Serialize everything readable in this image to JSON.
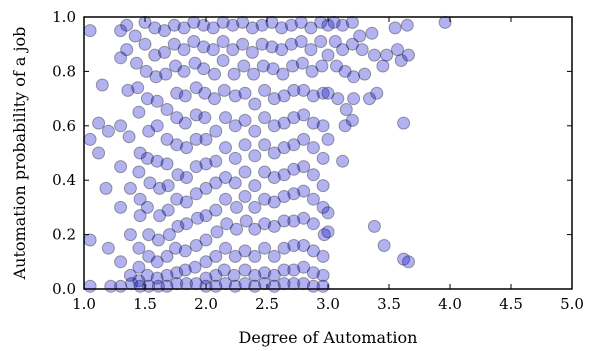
{
  "chart_data": {
    "type": "scatter",
    "title": "",
    "xlabel": "Degree of Automation",
    "ylabel": "Automation probability of a job",
    "xlim": [
      1.0,
      5.0
    ],
    "ylim": [
      0.0,
      1.0
    ],
    "xticks": [
      "1.0",
      "1.5",
      "2.0",
      "2.5",
      "3.0",
      "3.5",
      "4.0",
      "4.5",
      "5.0"
    ],
    "yticks": [
      "0.0",
      "0.2",
      "0.4",
      "0.6",
      "0.8",
      "1.0"
    ],
    "grid": false,
    "marker_color": "#0000cc",
    "marker_edge": "#000000",
    "points": [
      [
        1.05,
        0.95
      ],
      [
        1.05,
        0.55
      ],
      [
        1.05,
        0.18
      ],
      [
        1.05,
        0.01
      ],
      [
        1.12,
        0.5
      ],
      [
        1.12,
        0.61
      ],
      [
        1.15,
        0.75
      ],
      [
        1.18,
        0.37
      ],
      [
        1.2,
        0.58
      ],
      [
        1.2,
        0.15
      ],
      [
        1.22,
        0.01
      ],
      [
        1.3,
        0.95
      ],
      [
        1.3,
        0.85
      ],
      [
        1.3,
        0.6
      ],
      [
        1.3,
        0.45
      ],
      [
        1.3,
        0.3
      ],
      [
        1.3,
        0.1
      ],
      [
        1.3,
        0.01
      ],
      [
        1.35,
        0.97
      ],
      [
        1.35,
        0.88
      ],
      [
        1.36,
        0.73
      ],
      [
        1.37,
        0.56
      ],
      [
        1.38,
        0.37
      ],
      [
        1.38,
        0.2
      ],
      [
        1.38,
        0.05
      ],
      [
        1.39,
        0.02
      ],
      [
        1.42,
        0.93
      ],
      [
        1.43,
        0.83
      ],
      [
        1.44,
        0.74
      ],
      [
        1.45,
        0.65
      ],
      [
        1.46,
        0.5
      ],
      [
        1.45,
        0.43
      ],
      [
        1.46,
        0.33
      ],
      [
        1.46,
        0.27
      ],
      [
        1.45,
        0.15
      ],
      [
        1.45,
        0.08
      ],
      [
        1.45,
        0.03
      ],
      [
        1.46,
        0.01
      ],
      [
        1.5,
        0.98
      ],
      [
        1.5,
        0.9
      ],
      [
        1.51,
        0.8
      ],
      [
        1.52,
        0.7
      ],
      [
        1.53,
        0.58
      ],
      [
        1.52,
        0.48
      ],
      [
        1.54,
        0.39
      ],
      [
        1.52,
        0.3
      ],
      [
        1.53,
        0.2
      ],
      [
        1.53,
        0.12
      ],
      [
        1.52,
        0.05
      ],
      [
        1.53,
        0.01
      ],
      [
        1.58,
        0.96
      ],
      [
        1.58,
        0.86
      ],
      [
        1.59,
        0.78
      ],
      [
        1.6,
        0.69
      ],
      [
        1.6,
        0.6
      ],
      [
        1.6,
        0.47
      ],
      [
        1.62,
        0.37
      ],
      [
        1.62,
        0.27
      ],
      [
        1.61,
        0.18
      ],
      [
        1.6,
        0.1
      ],
      [
        1.6,
        0.04
      ],
      [
        1.61,
        0.01
      ],
      [
        1.66,
        0.95
      ],
      [
        1.66,
        0.87
      ],
      [
        1.67,
        0.79
      ],
      [
        1.68,
        0.66
      ],
      [
        1.68,
        0.55
      ],
      [
        1.68,
        0.46
      ],
      [
        1.69,
        0.38
      ],
      [
        1.69,
        0.29
      ],
      [
        1.7,
        0.2
      ],
      [
        1.68,
        0.12
      ],
      [
        1.68,
        0.05
      ],
      [
        1.68,
        0.01
      ],
      [
        1.74,
        0.97
      ],
      [
        1.74,
        0.9
      ],
      [
        1.75,
        0.82
      ],
      [
        1.76,
        0.72
      ],
      [
        1.76,
        0.63
      ],
      [
        1.76,
        0.53
      ],
      [
        1.77,
        0.42
      ],
      [
        1.76,
        0.33
      ],
      [
        1.77,
        0.23
      ],
      [
        1.75,
        0.15
      ],
      [
        1.76,
        0.06
      ],
      [
        1.76,
        0.02
      ],
      [
        1.82,
        0.96
      ],
      [
        1.82,
        0.88
      ],
      [
        1.82,
        0.8
      ],
      [
        1.83,
        0.71
      ],
      [
        1.83,
        0.61
      ],
      [
        1.84,
        0.52
      ],
      [
        1.84,
        0.41
      ],
      [
        1.84,
        0.32
      ],
      [
        1.84,
        0.24
      ],
      [
        1.83,
        0.14
      ],
      [
        1.83,
        0.07
      ],
      [
        1.84,
        0.02
      ],
      [
        1.9,
        0.98
      ],
      [
        1.9,
        0.91
      ],
      [
        1.91,
        0.83
      ],
      [
        1.92,
        0.74
      ],
      [
        1.92,
        0.64
      ],
      [
        1.92,
        0.55
      ],
      [
        1.92,
        0.45
      ],
      [
        1.92,
        0.35
      ],
      [
        1.93,
        0.26
      ],
      [
        1.92,
        0.16
      ],
      [
        1.91,
        0.08
      ],
      [
        1.92,
        0.02
      ],
      [
        1.98,
        0.97
      ],
      [
        1.98,
        0.89
      ],
      [
        1.98,
        0.81
      ],
      [
        1.99,
        0.72
      ],
      [
        1.99,
        0.63
      ],
      [
        2.0,
        0.55
      ],
      [
        2.0,
        0.46
      ],
      [
        2.0,
        0.37
      ],
      [
        2.0,
        0.27
      ],
      [
        2.0,
        0.18
      ],
      [
        2.0,
        0.1
      ],
      [
        2.0,
        0.04
      ],
      [
        2.0,
        0.01
      ],
      [
        2.06,
        0.96
      ],
      [
        2.06,
        0.88
      ],
      [
        2.07,
        0.79
      ],
      [
        2.07,
        0.7
      ],
      [
        2.08,
        0.58
      ],
      [
        2.08,
        0.47
      ],
      [
        2.08,
        0.39
      ],
      [
        2.08,
        0.29
      ],
      [
        2.09,
        0.21
      ],
      [
        2.08,
        0.12
      ],
      [
        2.08,
        0.05
      ],
      [
        2.08,
        0.01
      ],
      [
        2.14,
        0.98
      ],
      [
        2.14,
        0.91
      ],
      [
        2.14,
        0.84
      ],
      [
        2.15,
        0.73
      ],
      [
        2.16,
        0.63
      ],
      [
        2.16,
        0.52
      ],
      [
        2.16,
        0.41
      ],
      [
        2.16,
        0.33
      ],
      [
        2.17,
        0.24
      ],
      [
        2.16,
        0.15
      ],
      [
        2.15,
        0.07
      ],
      [
        2.16,
        0.02
      ],
      [
        2.22,
        0.97
      ],
      [
        2.22,
        0.88
      ],
      [
        2.23,
        0.79
      ],
      [
        2.24,
        0.71
      ],
      [
        2.24,
        0.6
      ],
      [
        2.24,
        0.48
      ],
      [
        2.24,
        0.39
      ],
      [
        2.25,
        0.3
      ],
      [
        2.25,
        0.22
      ],
      [
        2.24,
        0.12
      ],
      [
        2.23,
        0.05
      ],
      [
        2.24,
        0.01
      ],
      [
        2.3,
        0.98
      ],
      [
        2.3,
        0.9
      ],
      [
        2.31,
        0.82
      ],
      [
        2.32,
        0.72
      ],
      [
        2.32,
        0.62
      ],
      [
        2.32,
        0.53
      ],
      [
        2.32,
        0.43
      ],
      [
        2.32,
        0.34
      ],
      [
        2.33,
        0.25
      ],
      [
        2.32,
        0.14
      ],
      [
        2.32,
        0.07
      ],
      [
        2.32,
        0.02
      ],
      [
        2.38,
        0.96
      ],
      [
        2.38,
        0.87
      ],
      [
        2.39,
        0.79
      ],
      [
        2.4,
        0.68
      ],
      [
        2.4,
        0.58
      ],
      [
        2.4,
        0.49
      ],
      [
        2.4,
        0.38
      ],
      [
        2.4,
        0.3
      ],
      [
        2.4,
        0.22
      ],
      [
        2.4,
        0.12
      ],
      [
        2.4,
        0.05
      ],
      [
        2.4,
        0.01
      ],
      [
        2.46,
        0.97
      ],
      [
        2.46,
        0.9
      ],
      [
        2.47,
        0.82
      ],
      [
        2.48,
        0.73
      ],
      [
        2.48,
        0.63
      ],
      [
        2.48,
        0.53
      ],
      [
        2.48,
        0.43
      ],
      [
        2.48,
        0.33
      ],
      [
        2.48,
        0.24
      ],
      [
        2.48,
        0.15
      ],
      [
        2.48,
        0.06
      ],
      [
        2.48,
        0.02
      ],
      [
        2.54,
        0.98
      ],
      [
        2.54,
        0.89
      ],
      [
        2.55,
        0.81
      ],
      [
        2.56,
        0.7
      ],
      [
        2.56,
        0.6
      ],
      [
        2.56,
        0.5
      ],
      [
        2.56,
        0.41
      ],
      [
        2.56,
        0.32
      ],
      [
        2.56,
        0.23
      ],
      [
        2.56,
        0.12
      ],
      [
        2.56,
        0.05
      ],
      [
        2.56,
        0.01
      ],
      [
        2.62,
        0.96
      ],
      [
        2.62,
        0.88
      ],
      [
        2.63,
        0.79
      ],
      [
        2.64,
        0.71
      ],
      [
        2.64,
        0.61
      ],
      [
        2.64,
        0.52
      ],
      [
        2.64,
        0.42
      ],
      [
        2.64,
        0.34
      ],
      [
        2.64,
        0.25
      ],
      [
        2.64,
        0.15
      ],
      [
        2.64,
        0.07
      ],
      [
        2.64,
        0.02
      ],
      [
        2.7,
        0.97
      ],
      [
        2.7,
        0.9
      ],
      [
        2.71,
        0.82
      ],
      [
        2.72,
        0.73
      ],
      [
        2.72,
        0.63
      ],
      [
        2.72,
        0.53
      ],
      [
        2.72,
        0.44
      ],
      [
        2.72,
        0.35
      ],
      [
        2.72,
        0.25
      ],
      [
        2.72,
        0.16
      ],
      [
        2.72,
        0.07
      ],
      [
        2.72,
        0.02
      ],
      [
        2.78,
        0.98
      ],
      [
        2.78,
        0.91
      ],
      [
        2.79,
        0.83
      ],
      [
        2.8,
        0.73
      ],
      [
        2.8,
        0.64
      ],
      [
        2.8,
        0.55
      ],
      [
        2.8,
        0.45
      ],
      [
        2.8,
        0.36
      ],
      [
        2.8,
        0.26
      ],
      [
        2.8,
        0.16
      ],
      [
        2.8,
        0.08
      ],
      [
        2.8,
        0.02
      ],
      [
        2.86,
        0.96
      ],
      [
        2.86,
        0.88
      ],
      [
        2.87,
        0.8
      ],
      [
        2.88,
        0.71
      ],
      [
        2.88,
        0.61
      ],
      [
        2.88,
        0.52
      ],
      [
        2.88,
        0.42
      ],
      [
        2.88,
        0.33
      ],
      [
        2.88,
        0.24
      ],
      [
        2.88,
        0.14
      ],
      [
        2.88,
        0.06
      ],
      [
        2.88,
        0.01
      ],
      [
        2.94,
        0.98
      ],
      [
        2.94,
        0.91
      ],
      [
        2.95,
        0.82
      ],
      [
        2.96,
        0.72
      ],
      [
        2.96,
        0.6
      ],
      [
        2.96,
        0.48
      ],
      [
        2.96,
        0.38
      ],
      [
        2.96,
        0.3
      ],
      [
        2.97,
        0.2
      ],
      [
        2.96,
        0.12
      ],
      [
        2.96,
        0.05
      ],
      [
        2.96,
        0.01
      ],
      [
        3.0,
        0.97
      ],
      [
        3.0,
        0.86
      ],
      [
        3.0,
        0.72
      ],
      [
        3.0,
        0.55
      ],
      [
        3.0,
        0.28
      ],
      [
        3.0,
        0.21
      ],
      [
        3.05,
        0.98
      ],
      [
        3.06,
        0.91
      ],
      [
        3.07,
        0.82
      ],
      [
        3.08,
        0.7
      ],
      [
        3.12,
        0.97
      ],
      [
        3.12,
        0.88
      ],
      [
        3.14,
        0.8
      ],
      [
        3.15,
        0.66
      ],
      [
        3.14,
        0.6
      ],
      [
        3.12,
        0.47
      ],
      [
        3.2,
        0.98
      ],
      [
        3.2,
        0.9
      ],
      [
        3.21,
        0.78
      ],
      [
        3.21,
        0.7
      ],
      [
        3.2,
        0.62
      ],
      [
        3.26,
        0.93
      ],
      [
        3.28,
        0.88
      ],
      [
        3.3,
        0.79
      ],
      [
        3.34,
        0.7
      ],
      [
        3.36,
        0.94
      ],
      [
        3.38,
        0.86
      ],
      [
        3.4,
        0.72
      ],
      [
        3.38,
        0.23
      ],
      [
        3.45,
        0.82
      ],
      [
        3.48,
        0.86
      ],
      [
        3.46,
        0.16
      ],
      [
        3.55,
        0.96
      ],
      [
        3.57,
        0.88
      ],
      [
        3.6,
        0.84
      ],
      [
        3.62,
        0.11
      ],
      [
        3.62,
        0.61
      ],
      [
        3.65,
        0.97
      ],
      [
        3.66,
        0.86
      ],
      [
        3.66,
        0.1
      ],
      [
        3.96,
        0.98
      ]
    ]
  }
}
